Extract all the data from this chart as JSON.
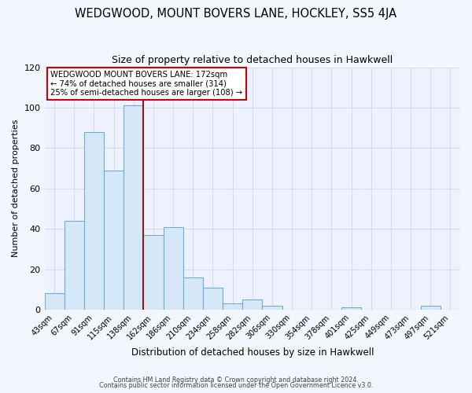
{
  "title": "WEDGWOOD, MOUNT BOVERS LANE, HOCKLEY, SS5 4JA",
  "subtitle": "Size of property relative to detached houses in Hawkwell",
  "xlabel": "Distribution of detached houses by size in Hawkwell",
  "ylabel": "Number of detached properties",
  "bar_color": "#d6e8f7",
  "bar_edge_color": "#6aaed6",
  "bin_labels": [
    "43sqm",
    "67sqm",
    "91sqm",
    "115sqm",
    "138sqm",
    "162sqm",
    "186sqm",
    "210sqm",
    "234sqm",
    "258sqm",
    "282sqm",
    "306sqm",
    "330sqm",
    "354sqm",
    "378sqm",
    "401sqm",
    "425sqm",
    "449sqm",
    "473sqm",
    "497sqm",
    "521sqm"
  ],
  "bar_heights": [
    8,
    44,
    88,
    69,
    101,
    37,
    41,
    16,
    11,
    3,
    5,
    2,
    0,
    0,
    0,
    1,
    0,
    0,
    0,
    2,
    0
  ],
  "vline_x": 5,
  "vline_color": "#8b1a1a",
  "ylim": [
    0,
    120
  ],
  "yticks": [
    0,
    20,
    40,
    60,
    80,
    100,
    120
  ],
  "annotation_title": "WEDGWOOD MOUNT BOVERS LANE: 172sqm",
  "annotation_line1": "← 74% of detached houses are smaller (314)",
  "annotation_line2": "25% of semi-detached houses are larger (108) →",
  "footer1": "Contains HM Land Registry data © Crown copyright and database right 2024.",
  "footer2": "Contains public sector information licensed under the Open Government Licence v3.0.",
  "fig_bg_color": "#f4f6ff",
  "plot_bg_color": "#eef2ff",
  "grid_color": "#d8dce8",
  "title_fontsize": 10.5,
  "subtitle_fontsize": 9
}
